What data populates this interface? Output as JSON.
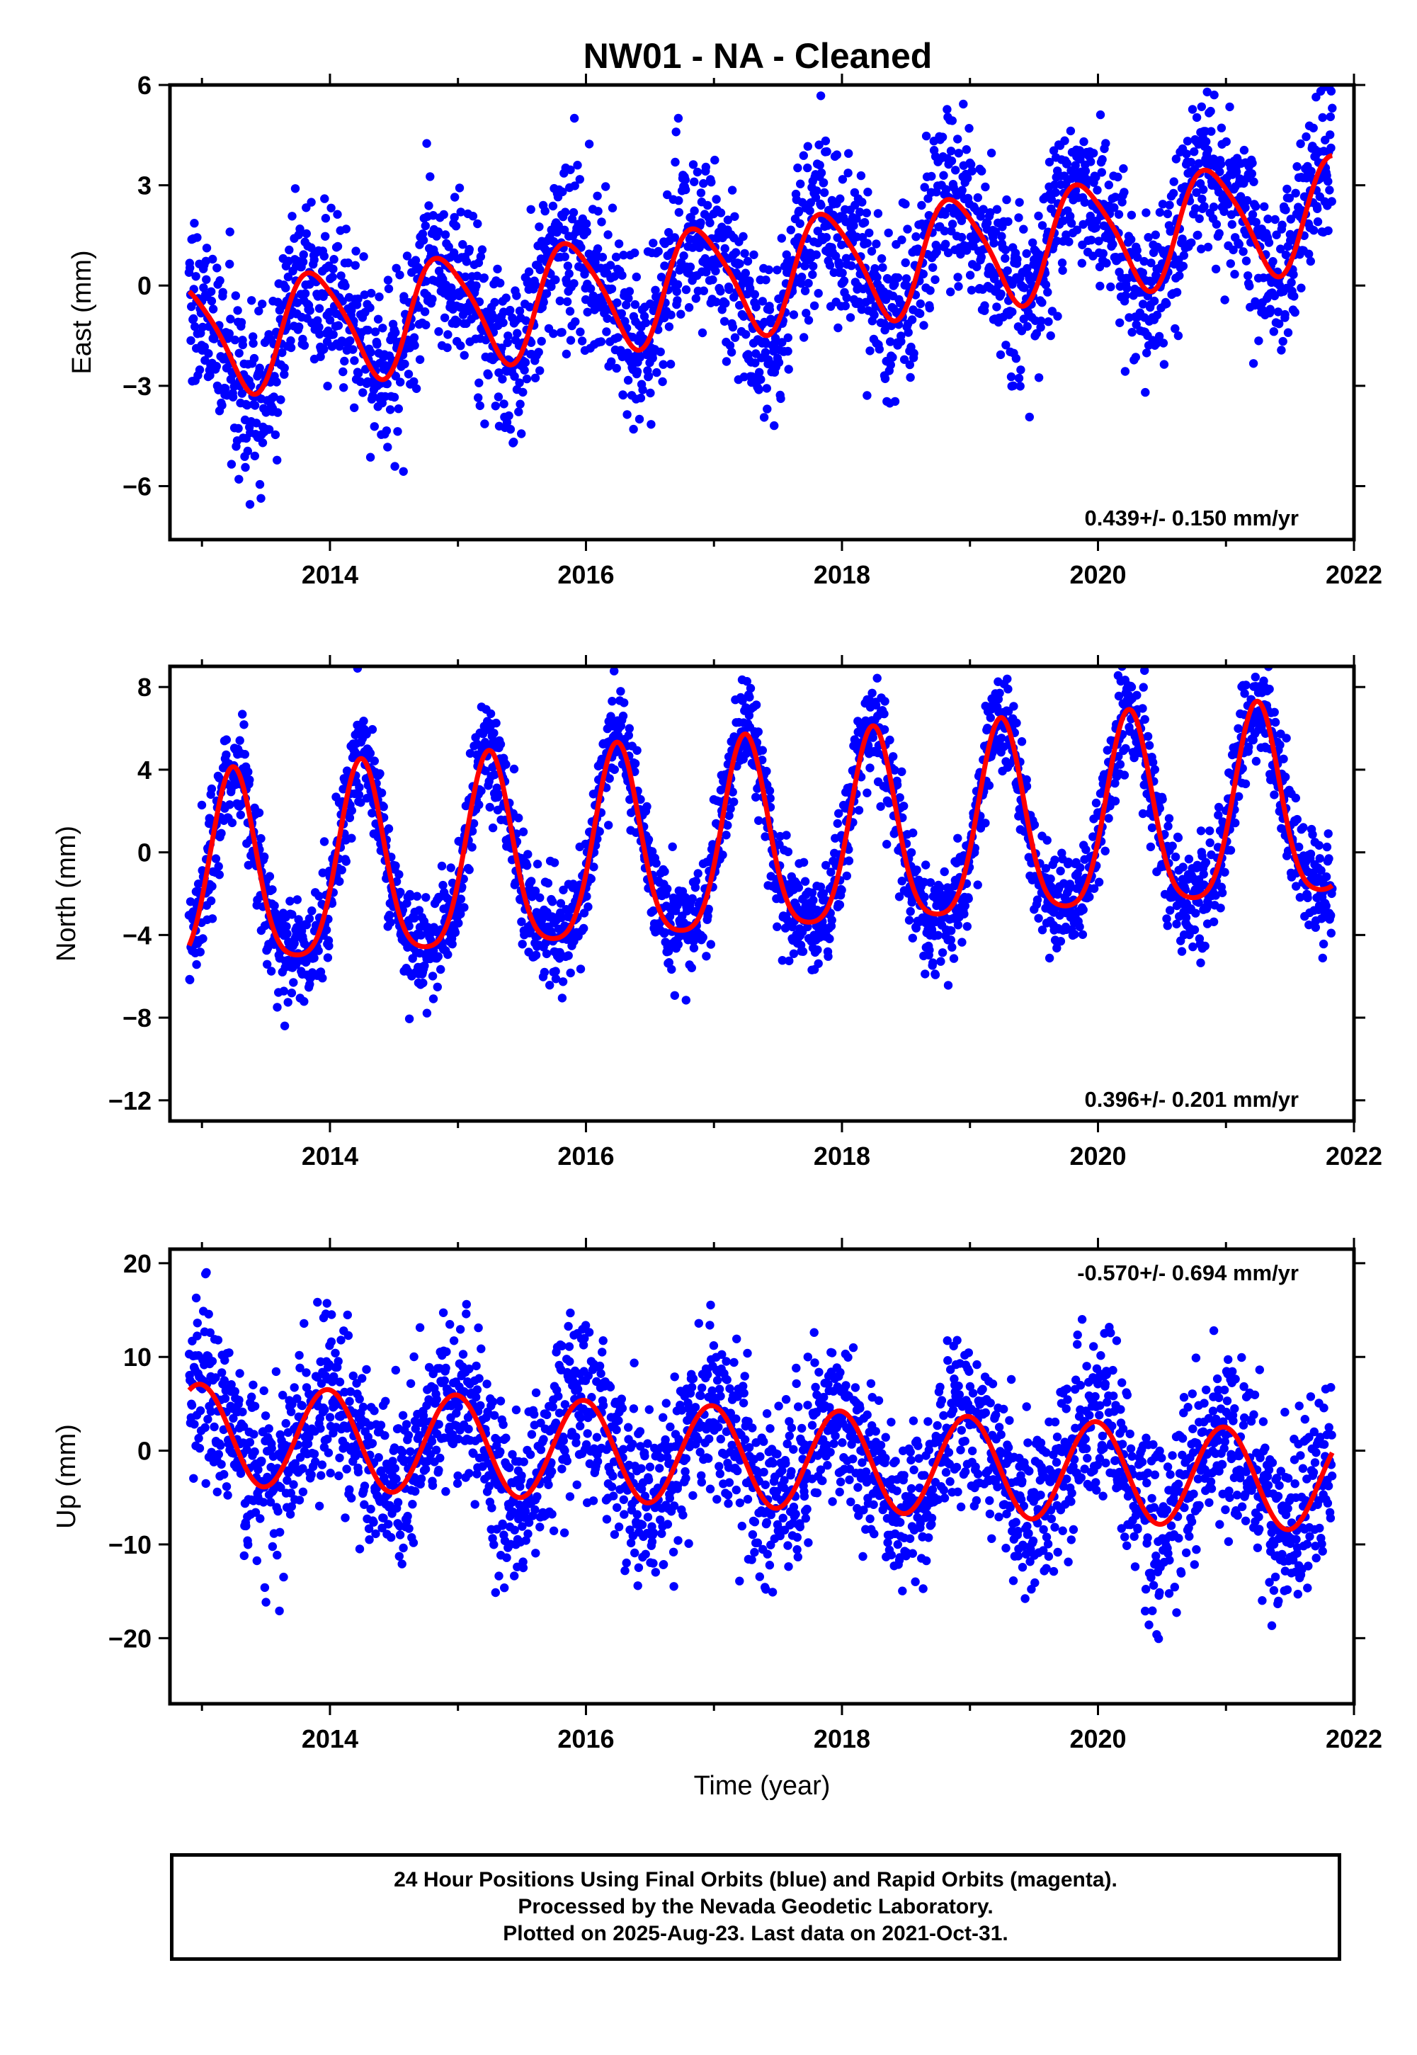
{
  "title": "NW01  - NA - Cleaned",
  "colors": {
    "points": "#0000ff",
    "fit": "#ff0000",
    "frame": "#000000"
  },
  "chart_data": [
    {
      "type": "scatter",
      "ylabel": "East (mm)",
      "xlabel": "",
      "rate_label": "0.439+/- 0.150 mm/yr",
      "rate_position": "bottom-right",
      "xlim": [
        2012.75,
        2022.0
      ],
      "ylim": [
        -7.6,
        6.0
      ],
      "xticks": [
        2014,
        2016,
        2018,
        2020,
        2022
      ],
      "yticks": [
        6,
        3,
        0,
        -3,
        -6
      ],
      "ytick_labels": [
        "6",
        "3",
        "0",
        "−3",
        "−6"
      ],
      "data_start": 2012.9,
      "data_end": 2021.83,
      "fit": {
        "offset": -1.65,
        "rate": 0.439,
        "ref_year": 2012.9,
        "annual_sin": -1.12,
        "annual_cos": 1.22,
        "semiannual_sin": 0.1,
        "semiannual_cos": -0.25
      },
      "scatter_sd": 1.25,
      "point_count": 2600
    },
    {
      "type": "scatter",
      "ylabel": "North (mm)",
      "xlabel": "",
      "rate_label": "0.396+/- 0.201 mm/yr",
      "rate_position": "bottom-right",
      "xlim": [
        2012.75,
        2022.0
      ],
      "ylim": [
        -13.0,
        9.0
      ],
      "xticks": [
        2014,
        2016,
        2018,
        2020,
        2022
      ],
      "yticks": [
        8,
        4,
        0,
        -4,
        -8,
        -12
      ],
      "ytick_labels": [
        "8",
        "4",
        "0",
        "−4",
        "−8",
        "−12"
      ],
      "data_start": 2012.9,
      "data_end": 2021.83,
      "fit": {
        "offset": -1.55,
        "rate": 0.396,
        "ref_year": 2012.9,
        "annual_sin": 4.65,
        "annual_cos": 0.18,
        "semiannual_sin": 0.1,
        "semiannual_cos": -0.9
      },
      "scatter_sd": 1.3,
      "point_count": 2600
    },
    {
      "type": "scatter",
      "ylabel": "Up (mm)",
      "xlabel": "Time (year)",
      "rate_label": "-0.570+/- 0.694 mm/yr",
      "rate_position": "top-right",
      "xlim": [
        2012.75,
        2022.0
      ],
      "ylim": [
        -27.0,
        21.5
      ],
      "xticks": [
        2014,
        2016,
        2018,
        2020,
        2022
      ],
      "yticks": [
        20,
        10,
        0,
        -10,
        -20
      ],
      "ytick_labels": [
        "20",
        "10",
        "0",
        "−10",
        "−20"
      ],
      "data_start": 2012.9,
      "data_end": 2021.83,
      "fit": {
        "offset": 1.8,
        "rate": -0.57,
        "ref_year": 2012.9,
        "annual_sin": -0.6,
        "annual_cos": 5.3,
        "semiannual_sin": 0.0,
        "semiannual_cos": 0.0
      },
      "scatter_sd": 4.6,
      "point_count": 2600
    }
  ],
  "footer": {
    "line1": "24 Hour Positions Using Final Orbits (blue) and Rapid Orbits (magenta).",
    "line2": "Processed by the Nevada Geodetic Laboratory.",
    "line3": "Plotted on 2025-Aug-23. Last data on 2021-Oct-31."
  }
}
